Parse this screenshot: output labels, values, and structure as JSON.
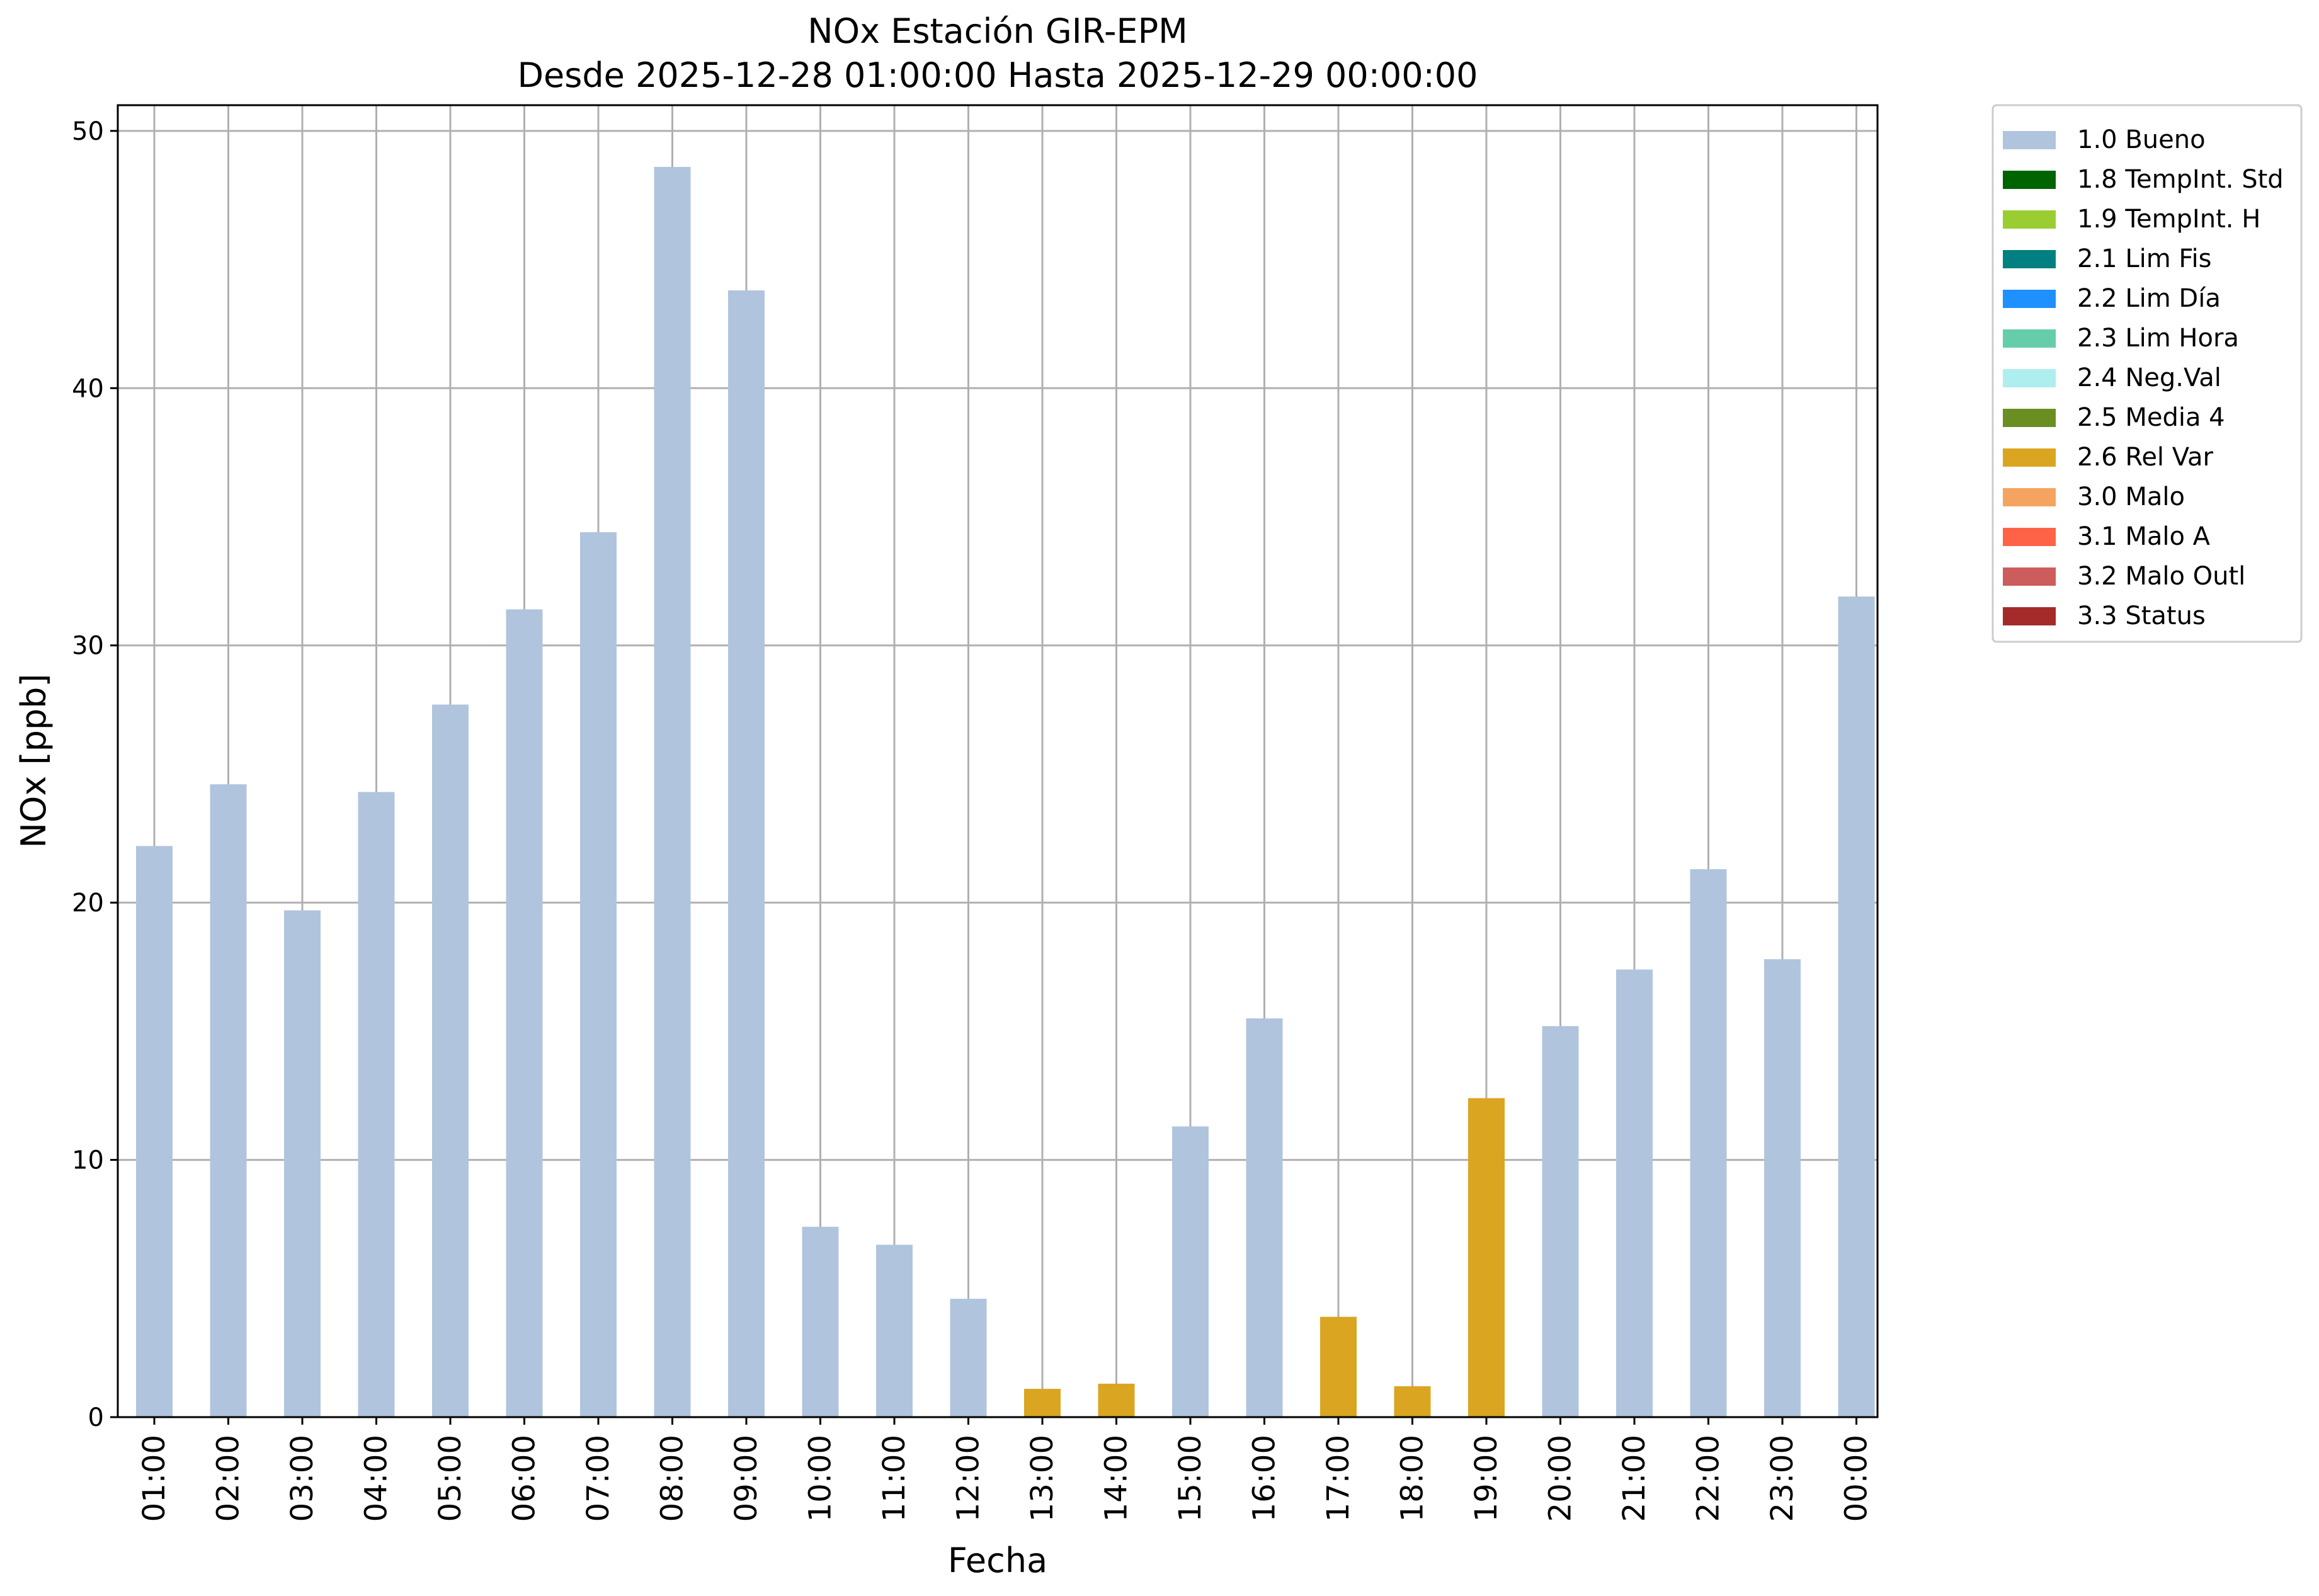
{
  "chart_data": {
    "type": "bar",
    "title": "NOx Estación GIR-EPM",
    "subtitle": "Desde 2025-12-28 01:00:00 Hasta 2025-12-29 00:00:00",
    "xlabel": "Fecha",
    "ylabel": "NOx [ppb]",
    "ylim": [
      0,
      51
    ],
    "yticks": [
      0,
      10,
      20,
      30,
      40,
      50
    ],
    "grid": true,
    "legend_position": "outside-top-right",
    "categories": [
      "01:00",
      "02:00",
      "03:00",
      "04:00",
      "05:00",
      "06:00",
      "07:00",
      "08:00",
      "09:00",
      "10:00",
      "11:00",
      "12:00",
      "13:00",
      "14:00",
      "15:00",
      "16:00",
      "17:00",
      "18:00",
      "19:00",
      "20:00",
      "21:00",
      "22:00",
      "23:00",
      "00:00"
    ],
    "values": [
      22.2,
      24.6,
      19.7,
      24.3,
      27.7,
      31.4,
      34.4,
      48.6,
      43.8,
      7.4,
      6.7,
      4.6,
      1.1,
      1.3,
      11.3,
      15.5,
      3.9,
      1.2,
      12.4,
      15.2,
      17.4,
      21.3,
      17.8,
      31.9
    ],
    "flags": [
      "1.0 Bueno",
      "1.0 Bueno",
      "1.0 Bueno",
      "1.0 Bueno",
      "1.0 Bueno",
      "1.0 Bueno",
      "1.0 Bueno",
      "1.0 Bueno",
      "1.0 Bueno",
      "1.0 Bueno",
      "1.0 Bueno",
      "1.0 Bueno",
      "2.6 Rel Var",
      "2.6 Rel Var",
      "1.0 Bueno",
      "1.0 Bueno",
      "2.6 Rel Var",
      "2.6 Rel Var",
      "2.6 Rel Var",
      "1.0 Bueno",
      "1.0 Bueno",
      "1.0 Bueno",
      "1.0 Bueno",
      "1.0 Bueno"
    ],
    "legend": [
      {
        "label": "1.0 Bueno",
        "color": "#b0c4de"
      },
      {
        "label": "1.8 TempInt. Std",
        "color": "#006400"
      },
      {
        "label": "1.9 TempInt. H",
        "color": "#9acd32"
      },
      {
        "label": "2.1 Lim Fis",
        "color": "#008080"
      },
      {
        "label": "2.2 Lim Día",
        "color": "#1e90ff"
      },
      {
        "label": "2.3 Lim Hora",
        "color": "#66cdaa"
      },
      {
        "label": "2.4 Neg.Val",
        "color": "#afeeee"
      },
      {
        "label": "2.5 Media 4",
        "color": "#6b8e23"
      },
      {
        "label": "2.6 Rel Var",
        "color": "#daa520"
      },
      {
        "label": "3.0 Malo",
        "color": "#f4a460"
      },
      {
        "label": "3.1 Malo A",
        "color": "#ff6347"
      },
      {
        "label": "3.2 Malo Outl",
        "color": "#cd5c5c"
      },
      {
        "label": "3.3 Status",
        "color": "#a52a2a"
      }
    ]
  }
}
